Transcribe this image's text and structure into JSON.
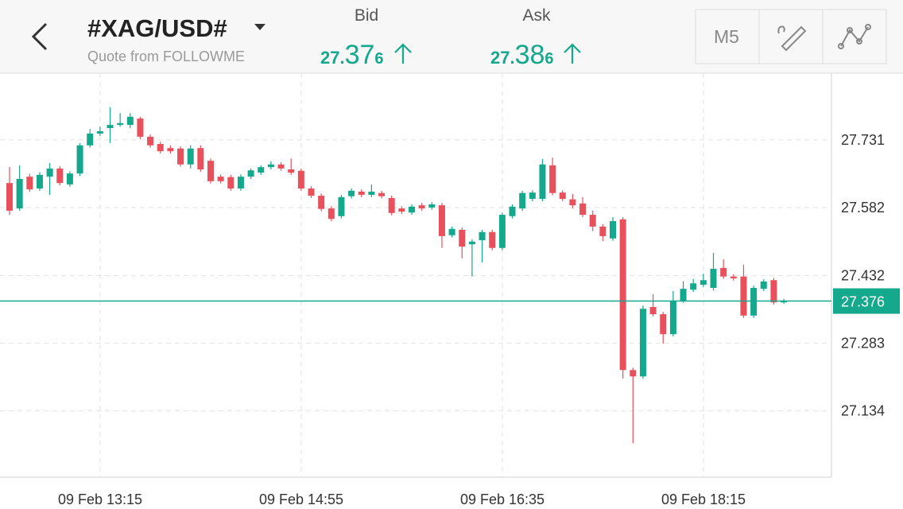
{
  "header": {
    "title": "#XAG/USD#",
    "subtitle": "Quote from FOLLOWME",
    "bid": {
      "label": "Bid",
      "int": "27.",
      "mid": "37",
      "small": "6"
    },
    "ask": {
      "label": "Ask",
      "int": "27.",
      "mid": "38",
      "small": "6"
    },
    "timeframe": "M5"
  },
  "chart_data": {
    "type": "candlestick",
    "up_color": "#14a88c",
    "down_color": "#e8505b",
    "ylim": [
      26.988,
      27.878
    ],
    "yticks": [
      27.134,
      27.283,
      27.432,
      27.582,
      27.731
    ],
    "grid": true,
    "xtick_labels": [
      "09 Feb 13:15",
      "09 Feb 14:55",
      "09 Feb 16:35",
      "09 Feb 18:15"
    ],
    "current_price": 27.376,
    "open": [
      27.636,
      27.58,
      27.65,
      27.624,
      27.65,
      27.668,
      27.633,
      27.657,
      27.719,
      27.745,
      27.757,
      27.764,
      27.764,
      27.778,
      27.738,
      27.722,
      27.713,
      27.712,
      27.677,
      27.713,
      27.685,
      27.65,
      27.649,
      27.624,
      27.65,
      27.659,
      27.671,
      27.677,
      27.666,
      27.663,
      27.624,
      27.608,
      27.58,
      27.563,
      27.607,
      27.617,
      27.61,
      27.614,
      27.603,
      27.58,
      27.571,
      27.587,
      27.582,
      27.587,
      27.521,
      27.533,
      27.501,
      27.51,
      27.528,
      27.493,
      27.563,
      27.58,
      27.601,
      27.601,
      27.675,
      27.615,
      27.6,
      27.591,
      27.566,
      27.54,
      27.514,
      27.556,
      27.224,
      27.21,
      27.363,
      27.347,
      27.303,
      27.377,
      27.401,
      27.412,
      27.405,
      27.449,
      27.43,
      27.43,
      27.344,
      27.403,
      27.422,
      27.373
    ],
    "high": [
      27.671,
      27.675,
      27.656,
      27.66,
      27.68,
      27.673,
      27.662,
      27.724,
      27.755,
      27.76,
      27.803,
      27.79,
      27.79,
      27.782,
      27.743,
      27.727,
      27.719,
      27.717,
      27.719,
      27.719,
      27.69,
      27.655,
      27.654,
      27.655,
      27.668,
      27.675,
      27.684,
      27.682,
      27.69,
      27.668,
      27.629,
      27.613,
      27.585,
      27.61,
      27.624,
      27.622,
      27.633,
      27.619,
      27.608,
      27.585,
      27.589,
      27.592,
      27.594,
      27.592,
      27.54,
      27.538,
      27.512,
      27.533,
      27.533,
      27.571,
      27.589,
      27.619,
      27.62,
      27.689,
      27.692,
      27.62,
      27.612,
      27.605,
      27.575,
      27.545,
      27.561,
      27.561,
      27.229,
      27.366,
      27.391,
      27.352,
      27.398,
      27.42,
      27.425,
      27.436,
      27.482,
      27.468,
      27.435,
      27.456,
      27.41,
      27.424,
      27.427,
      27.381
    ],
    "low": [
      27.566,
      27.575,
      27.617,
      27.619,
      27.61,
      27.631,
      27.628,
      27.652,
      27.714,
      27.74,
      27.724,
      27.76,
      27.757,
      27.733,
      27.714,
      27.701,
      27.701,
      27.672,
      27.668,
      27.661,
      27.635,
      27.635,
      27.619,
      27.619,
      27.645,
      27.654,
      27.666,
      27.663,
      27.654,
      27.619,
      27.603,
      27.574,
      27.552,
      27.558,
      27.602,
      27.605,
      27.605,
      27.602,
      27.565,
      27.568,
      27.566,
      27.575,
      27.577,
      27.493,
      27.516,
      27.47,
      27.43,
      27.461,
      27.488,
      27.488,
      27.558,
      27.575,
      27.596,
      27.596,
      27.609,
      27.596,
      27.58,
      27.561,
      27.53,
      27.508,
      27.509,
      27.205,
      27.063,
      27.205,
      27.342,
      27.282,
      27.298,
      27.372,
      27.396,
      27.407,
      27.4,
      27.425,
      27.421,
      27.339,
      27.339,
      27.398,
      27.368,
      27.37
    ],
    "close": [
      27.575,
      27.645,
      27.622,
      27.654,
      27.668,
      27.636,
      27.657,
      27.719,
      27.745,
      27.75,
      27.764,
      27.768,
      27.782,
      27.738,
      27.719,
      27.706,
      27.706,
      27.677,
      27.712,
      27.666,
      27.64,
      27.64,
      27.624,
      27.65,
      27.664,
      27.671,
      27.677,
      27.668,
      27.659,
      27.624,
      27.608,
      27.579,
      27.557,
      27.605,
      27.619,
      27.61,
      27.617,
      27.607,
      27.57,
      27.573,
      27.584,
      27.58,
      27.589,
      27.519,
      27.535,
      27.496,
      27.507,
      27.528,
      27.493,
      27.566,
      27.584,
      27.614,
      27.615,
      27.677,
      27.614,
      27.601,
      27.587,
      27.566,
      27.54,
      27.519,
      27.552,
      27.224,
      27.21,
      27.359,
      27.347,
      27.303,
      27.377,
      27.403,
      27.415,
      27.422,
      27.447,
      27.43,
      27.426,
      27.344,
      27.405,
      27.419,
      27.373,
      27.376
    ]
  }
}
